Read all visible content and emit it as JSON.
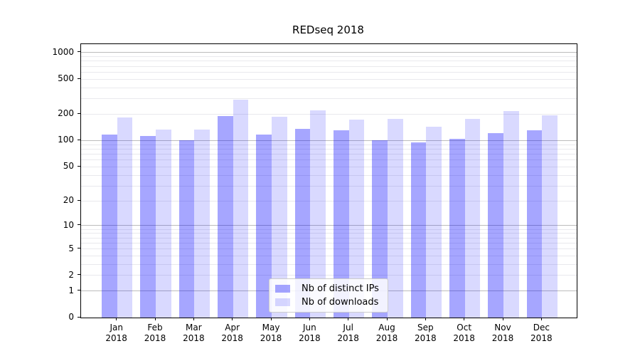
{
  "title": "REDseq 2018",
  "chart_data": {
    "type": "bar",
    "title": "REDseq 2018",
    "categories": [
      "Jan",
      "Feb",
      "Mar",
      "Apr",
      "May",
      "Jun",
      "Jul",
      "Aug",
      "Sep",
      "Oct",
      "Nov",
      "Dec"
    ],
    "category_year": "2018",
    "series": [
      {
        "name": "Nb of distinct IPs",
        "base_color": "#0000ff",
        "alpha": 0.35,
        "rendered_hex": "#a6a6ff",
        "values": [
          117,
          113,
          101,
          192,
          118,
          136,
          131,
          101,
          95,
          105,
          121,
          130
        ]
      },
      {
        "name": "Nb of downloads",
        "base_color": "#0000ff",
        "alpha": 0.15,
        "rendered_hex": "#d9d9ff",
        "values": [
          182,
          134,
          134,
          295,
          187,
          221,
          174,
          177,
          144,
          178,
          219,
          194
        ]
      }
    ],
    "yscale": "log(1+x)",
    "y_ticks": [
      0,
      1,
      2,
      5,
      10,
      20,
      50,
      100,
      200,
      500,
      1000
    ],
    "ylim": [
      0,
      1250
    ],
    "grid": "both",
    "legend_loc": "lower center",
    "xlabel": "",
    "ylabel": ""
  },
  "colors": {
    "grid_major": "#bcbcbc",
    "grid_minor": "#e9e9ed",
    "axis": "#000000",
    "background": "#ffffff",
    "legend_border": "#cccccc"
  }
}
